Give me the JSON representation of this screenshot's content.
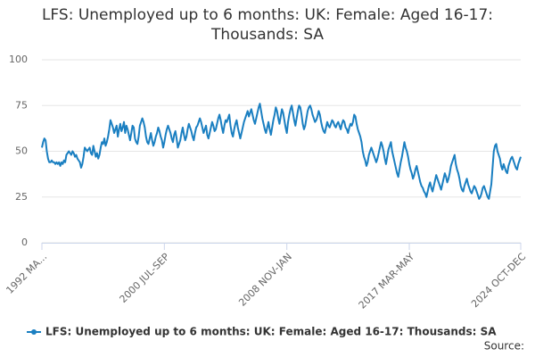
{
  "chart_data": {
    "type": "line",
    "title": "LFS: Unemployed up to 6 months: UK: Female: Aged 16-17: Thousands: SA",
    "source": "Source:",
    "ylim": [
      0,
      100
    ],
    "yticks": [
      0,
      25,
      50,
      75,
      100
    ],
    "grid": true,
    "categories": [
      "1992 MA...",
      null,
      null,
      null,
      null,
      null,
      null,
      null,
      null,
      null,
      null,
      null,
      null,
      null,
      null,
      null,
      null,
      null,
      null,
      null,
      null,
      null,
      null,
      null,
      null,
      null,
      null,
      null,
      null,
      null,
      null,
      null,
      null,
      null,
      null,
      null,
      null,
      null,
      null,
      null,
      null,
      null,
      null,
      null,
      null,
      null,
      null,
      null,
      null,
      null,
      null,
      null,
      null,
      null,
      null,
      null,
      null,
      null,
      null,
      null,
      null,
      null,
      null,
      null,
      null,
      null,
      null,
      null,
      null,
      null,
      null,
      null,
      null,
      null,
      null,
      null,
      null,
      null,
      null,
      null,
      null,
      null,
      null,
      null,
      null,
      null,
      null,
      null,
      null,
      null,
      null,
      null,
      null,
      null,
      null,
      null,
      null,
      null,
      null,
      null,
      "2000 JUL-SEP",
      null,
      null,
      null,
      null,
      null,
      null,
      null,
      null,
      null,
      null,
      null,
      null,
      null,
      null,
      null,
      null,
      null,
      null,
      null,
      null,
      null,
      null,
      null,
      null,
      null,
      null,
      null,
      null,
      null,
      null,
      null,
      null,
      null,
      null,
      null,
      null,
      null,
      null,
      null,
      null,
      null,
      null,
      null,
      null,
      null,
      null,
      null,
      null,
      null,
      null,
      null,
      null,
      null,
      null,
      null,
      null,
      null,
      null,
      null,
      null,
      null,
      null,
      null,
      null,
      null,
      null,
      null,
      null,
      null,
      null,
      null,
      null,
      null,
      null,
      null,
      null,
      null,
      null,
      null,
      null,
      null,
      null,
      null,
      null,
      null,
      null,
      null,
      null,
      null,
      null,
      null,
      null,
      null,
      null,
      null,
      null,
      null,
      null,
      null,
      "2008 NOV-JAN",
      null,
      null,
      null,
      null,
      null,
      null,
      null,
      null,
      null,
      null,
      null,
      null,
      null,
      null,
      null,
      null,
      null,
      null,
      null,
      null,
      null,
      null,
      null,
      null,
      null,
      null,
      null,
      null,
      null,
      null,
      null,
      null,
      null,
      null,
      null,
      null,
      null,
      null,
      null,
      null,
      null,
      null,
      null,
      null,
      null,
      null,
      null,
      null,
      null,
      null,
      null,
      null,
      null,
      null,
      null,
      null,
      null,
      null,
      null,
      null,
      null,
      null,
      null,
      null,
      null,
      null,
      null,
      null,
      null,
      null,
      null,
      null,
      null,
      null,
      null,
      null,
      null,
      null,
      null,
      null,
      null,
      null,
      null,
      null,
      null,
      null,
      null,
      null,
      null,
      null,
      null,
      null,
      null,
      null,
      null,
      null,
      null,
      null,
      null,
      "2017 MAR-MAY",
      null,
      null,
      null,
      null,
      null,
      null,
      null,
      null,
      null,
      null,
      null,
      null,
      null,
      null,
      null,
      null,
      null,
      null,
      null,
      null,
      null,
      null,
      null,
      null,
      null,
      null,
      null,
      null,
      null,
      null,
      null,
      null,
      null,
      null,
      null,
      null,
      null,
      null,
      null,
      null,
      null,
      null,
      null,
      null,
      null,
      null,
      null,
      null,
      null,
      null,
      null,
      null,
      null,
      null,
      null,
      null,
      null,
      null,
      null,
      null,
      null,
      null,
      null,
      null,
      null,
      null,
      null,
      null,
      null,
      null,
      null,
      null,
      null,
      null,
      null,
      null,
      null,
      null,
      null,
      null,
      null,
      null,
      null,
      null,
      null,
      null,
      null,
      null,
      null,
      null,
      "2024 OCT-DEC"
    ],
    "series": [
      {
        "name": "LFS: Unemployed up to 6 months: UK: Female: Aged 16-17: Thousands: SA",
        "color": "#1a7fc1",
        "values": [
          52,
          55,
          57,
          56,
          50,
          46,
          44,
          44,
          45,
          44,
          44,
          43,
          44,
          43,
          44,
          42,
          44,
          43,
          45,
          44,
          48,
          49,
          50,
          49,
          48,
          50,
          49,
          47,
          48,
          46,
          45,
          44,
          41,
          43,
          47,
          52,
          51,
          50,
          51,
          52,
          49,
          48,
          53,
          50,
          47,
          49,
          46,
          48,
          52,
          55,
          54,
          57,
          53,
          55,
          58,
          62,
          67,
          65,
          63,
          60,
          62,
          64,
          58,
          62,
          65,
          61,
          63,
          66,
          60,
          64,
          62,
          59,
          56,
          60,
          64,
          63,
          57,
          55,
          54,
          58,
          64,
          66,
          68,
          66,
          63,
          58,
          55,
          54,
          57,
          60,
          56,
          53,
          55,
          58,
          60,
          63,
          61,
          58,
          56,
          52,
          55,
          59,
          62,
          64,
          62,
          60,
          57,
          55,
          59,
          61,
          57,
          52,
          54,
          56,
          60,
          63,
          59,
          56,
          58,
          62,
          65,
          63,
          61,
          58,
          56,
          60,
          63,
          64,
          66,
          68,
          66,
          63,
          60,
          62,
          64,
          59,
          57,
          60,
          63,
          66,
          64,
          61,
          62,
          65,
          68,
          70,
          67,
          63,
          60,
          64,
          67,
          66,
          68,
          70,
          64,
          60,
          58,
          62,
          65,
          67,
          63,
          60,
          57,
          60,
          63,
          66,
          68,
          70,
          72,
          69,
          71,
          73,
          70,
          67,
          65,
          68,
          71,
          74,
          76,
          72,
          68,
          65,
          62,
          60,
          63,
          66,
          62,
          59,
          63,
          67,
          70,
          74,
          72,
          68,
          65,
          69,
          73,
          71,
          67,
          63,
          60,
          66,
          70,
          73,
          75,
          71,
          67,
          64,
          68,
          72,
          75,
          74,
          70,
          65,
          62,
          64,
          68,
          72,
          74,
          75,
          73,
          70,
          68,
          66,
          67,
          69,
          72,
          70,
          66,
          63,
          61,
          60,
          63,
          66,
          64,
          63,
          65,
          67,
          66,
          64,
          63,
          65,
          66,
          64,
          62,
          65,
          67,
          66,
          63,
          62,
          60,
          63,
          65,
          64,
          66,
          70,
          69,
          65,
          62,
          60,
          58,
          55,
          50,
          47,
          45,
          42,
          44,
          48,
          50,
          52,
          50,
          48,
          46,
          44,
          46,
          49,
          52,
          55,
          53,
          50,
          46,
          43,
          47,
          51,
          53,
          55,
          50,
          47,
          44,
          41,
          38,
          36,
          40,
          44,
          47,
          51,
          55,
          52,
          50,
          47,
          43,
          40,
          38,
          35,
          37,
          40,
          42,
          39,
          36,
          33,
          31,
          30,
          28,
          27,
          25,
          28,
          31,
          33,
          30,
          28,
          31,
          34,
          37,
          35,
          33,
          31,
          29,
          32,
          35,
          38,
          36,
          33,
          35,
          38,
          42,
          44,
          46,
          48,
          43,
          40,
          38,
          35,
          31,
          29,
          28,
          31,
          33,
          35,
          32,
          30,
          28,
          27,
          29,
          31,
          30,
          28,
          26,
          24,
          25,
          27,
          30,
          31,
          29,
          27,
          25,
          24,
          28,
          32,
          41,
          50,
          53,
          54,
          50,
          48,
          46,
          42,
          40,
          43,
          41,
          39,
          38,
          42,
          44,
          46,
          47,
          45,
          43,
          41,
          40,
          43,
          45,
          47
        ]
      }
    ]
  }
}
